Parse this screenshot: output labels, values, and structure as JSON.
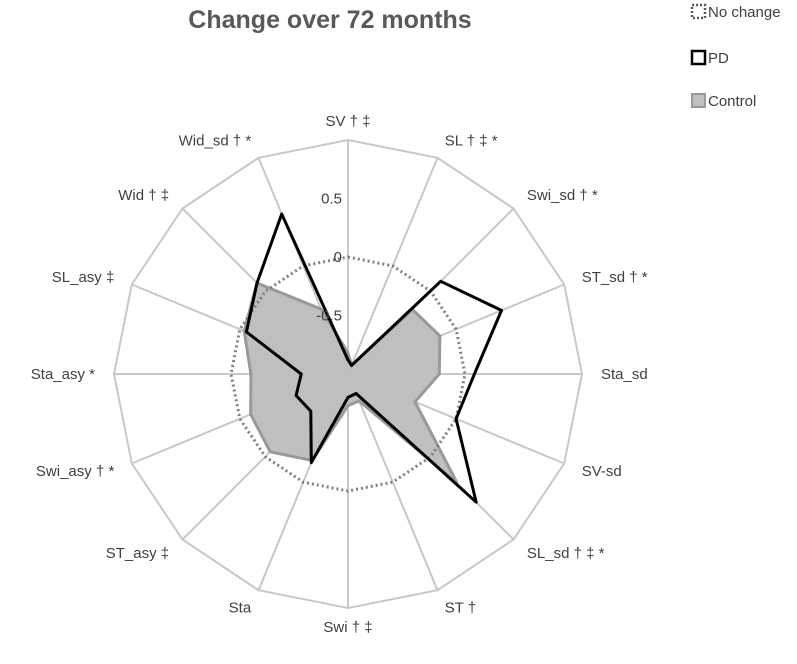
{
  "chart_data": {
    "type": "radar",
    "title": "Change over 72 months",
    "axes": [
      "SV † ‡",
      "SL † ‡ *",
      "Swi_sd † *",
      "ST_sd † *",
      "Sta_sd",
      "SV-sd",
      "SL_sd † ‡ *",
      "ST †",
      "Swi † ‡",
      "Sta",
      "ST_asy ‡",
      "Swi_asy † *",
      "Sta_asy *",
      "SL_asy ‡",
      "Wid † ‡",
      "Wid_sd † *"
    ],
    "range": [
      -1,
      1
    ],
    "ticks": [
      {
        "value": -0.5,
        "label": "-0.5"
      },
      {
        "value": 0,
        "label": "0"
      },
      {
        "value": 0.5,
        "label": "0.5"
      }
    ],
    "legend_position": "top-right",
    "series": [
      {
        "name": "No change",
        "style": "dotted-outline",
        "color": "#7f7f7f",
        "values": [
          0,
          0,
          0,
          0,
          0,
          0,
          0,
          0,
          0,
          0,
          0,
          0,
          0,
          0,
          0,
          0
        ]
      },
      {
        "name": "PD",
        "style": "outline",
        "color": "#000000",
        "values": [
          -0.88,
          -0.92,
          0.12,
          0.42,
          0.08,
          0.0,
          0.55,
          -0.82,
          -0.8,
          -0.18,
          -0.55,
          -0.52,
          -0.6,
          -0.06,
          0.1,
          0.48
        ]
      },
      {
        "name": "Control",
        "style": "filled",
        "color": "#bfbfbf",
        "stroke": "#999999",
        "values": [
          -0.82,
          -0.92,
          -0.22,
          -0.15,
          -0.22,
          -0.38,
          0.32,
          -0.75,
          -0.73,
          -0.2,
          -0.06,
          -0.1,
          -0.17,
          -0.04,
          0.1,
          -0.4
        ]
      }
    ]
  }
}
